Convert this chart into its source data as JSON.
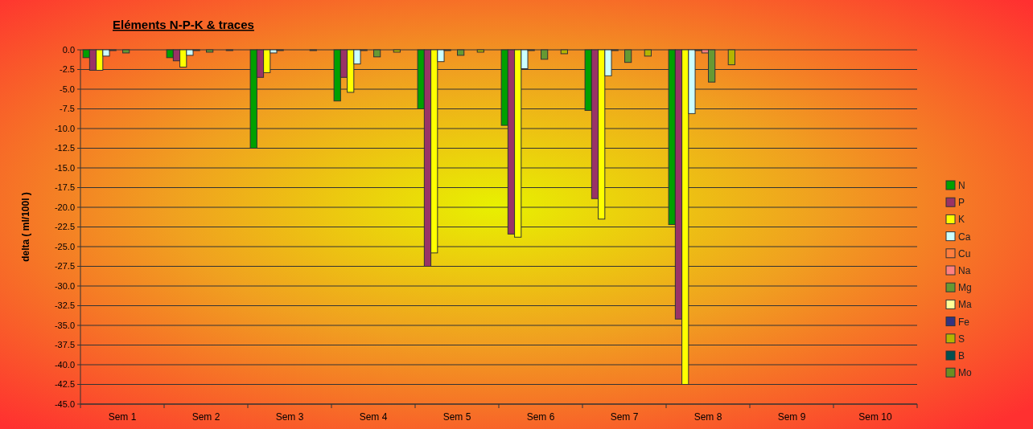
{
  "chart_data": {
    "type": "bar",
    "title": "Eléments N-P-K & traces",
    "ylabel": "delta ( ml/100l )",
    "categories": [
      "Sem 1",
      "Sem 2",
      "Sem 3",
      "Sem 4",
      "Sem 5",
      "Sem 6",
      "Sem 7",
      "Sem 8",
      "Sem 9",
      "Sem 10"
    ],
    "series": [
      {
        "name": "N",
        "color": "#00a000",
        "values": [
          -1.0,
          -1.0,
          -12.5,
          -6.5,
          -7.5,
          -9.6,
          -7.7,
          -22.2,
          null,
          null
        ]
      },
      {
        "name": "P",
        "color": "#993366",
        "values": [
          -2.6,
          -1.4,
          -3.5,
          -3.5,
          -27.5,
          -23.4,
          -18.9,
          -34.2,
          null,
          null
        ]
      },
      {
        "name": "K",
        "color": "#ffff00",
        "values": [
          -2.6,
          -2.2,
          -2.9,
          -5.4,
          -25.8,
          -23.8,
          -21.5,
          -42.5,
          null,
          null
        ]
      },
      {
        "name": "Ca",
        "color": "#ccffff",
        "values": [
          -0.8,
          -0.7,
          -0.4,
          -1.8,
          -1.5,
          -2.4,
          -3.3,
          -8.1,
          null,
          null
        ]
      },
      {
        "name": "Cu",
        "color": "#ff7f3f",
        "values": [
          -0.1,
          -0.1,
          -0.1,
          -0.1,
          -0.1,
          -0.1,
          -0.1,
          -0.1,
          null,
          null
        ]
      },
      {
        "name": "Na",
        "color": "#ff8080",
        "values": [
          0,
          0,
          0,
          0,
          0,
          0,
          0,
          -0.4,
          null,
          null
        ]
      },
      {
        "name": "Mg",
        "color": "#669933",
        "values": [
          -0.4,
          -0.3,
          null,
          -0.9,
          -0.7,
          -1.2,
          -1.6,
          -4.1,
          null,
          null
        ]
      },
      {
        "name": "Ma",
        "color": "#ffff99",
        "values": [
          0,
          0,
          0,
          0,
          0,
          0,
          0,
          0,
          null,
          null
        ]
      },
      {
        "name": "Fe",
        "color": "#333380",
        "values": [
          0,
          0,
          0,
          0,
          0,
          0,
          0,
          0,
          null,
          null
        ]
      },
      {
        "name": "S",
        "color": "#b5b500",
        "values": [
          null,
          -0.1,
          -0.1,
          -0.3,
          -0.3,
          -0.5,
          -0.8,
          -1.9,
          null,
          null
        ]
      },
      {
        "name": "B",
        "color": "#005050",
        "values": [
          0,
          0,
          0,
          0,
          0,
          0,
          0,
          0,
          null,
          null
        ]
      },
      {
        "name": "Mo",
        "color": "#6b8e23",
        "values": [
          0,
          0,
          0,
          0,
          0,
          0,
          0,
          0,
          null,
          null
        ]
      }
    ],
    "ylim": [
      -45,
      0
    ],
    "yticks": [
      {
        "value": 0,
        "label": "0.0"
      },
      {
        "value": -2.5,
        "label": "-2.5"
      },
      {
        "value": -5,
        "label": "-5.0"
      },
      {
        "value": -7.5,
        "label": "-7.5"
      },
      {
        "value": -10,
        "label": "-10.0"
      },
      {
        "value": -12.5,
        "label": "-12.5"
      },
      {
        "value": -15,
        "label": "-15.0"
      },
      {
        "value": -17.5,
        "label": "-17.5"
      },
      {
        "value": -20,
        "label": "-20.0"
      },
      {
        "value": -22.5,
        "label": "-22.5"
      },
      {
        "value": -25,
        "label": "-25.0"
      },
      {
        "value": -27.5,
        "label": "-27.5"
      },
      {
        "value": -30,
        "label": "-30.0"
      },
      {
        "value": -32.5,
        "label": "-32.5"
      },
      {
        "value": -35,
        "label": "-35.0"
      },
      {
        "value": -37.5,
        "label": "-37.5"
      },
      {
        "value": -40,
        "label": "-40.0"
      },
      {
        "value": -42.5,
        "label": "-42.5"
      },
      {
        "value": -45,
        "label": "-45.0"
      }
    ],
    "grid": "y",
    "legend": "right"
  }
}
